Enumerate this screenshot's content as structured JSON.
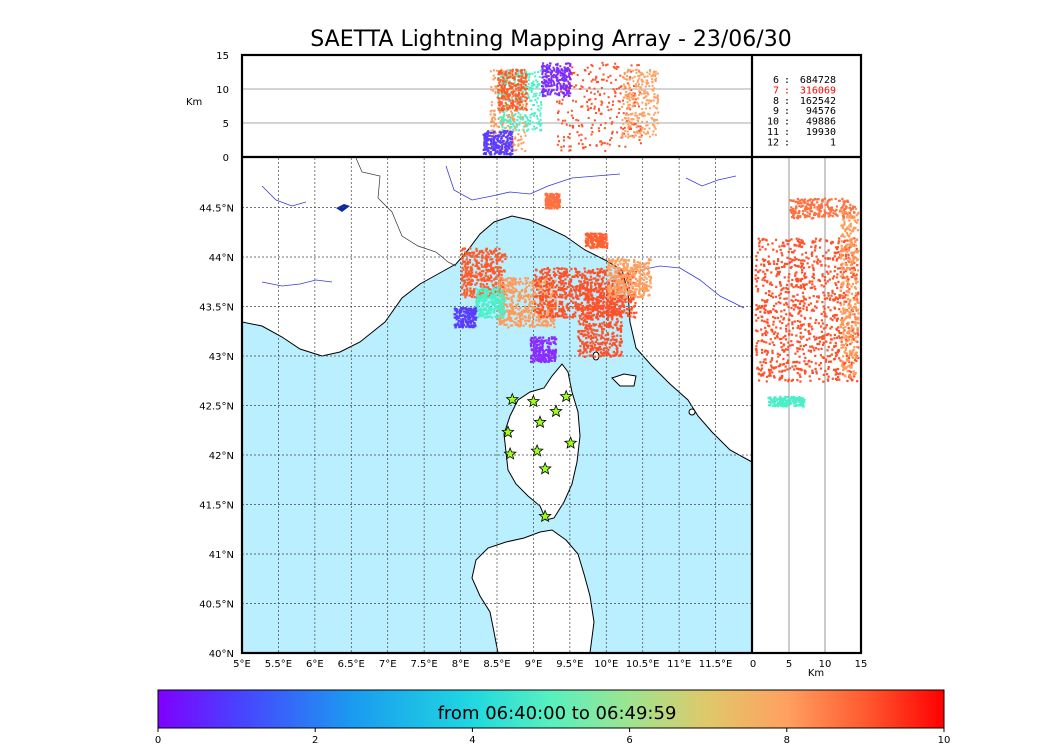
{
  "figure": {
    "title": "SAETTA Lightning Mapping Array - 23/06/30"
  },
  "chart_data": [
    {
      "panel": "altitude-vs-longitude",
      "type": "scatter",
      "xlim": [
        5,
        12
      ],
      "ylim": [
        0,
        15
      ],
      "y_ticks": [
        "0",
        "5",
        "10",
        "15"
      ],
      "ylabel": "Km",
      "grid": "horizontal",
      "clusters": [
        {
          "lon": [
            8.4,
            8.9
          ],
          "alt": [
            1,
            13
          ],
          "color": "#ff9b5a"
        },
        {
          "lon": [
            8.5,
            9.1
          ],
          "alt": [
            4,
            13
          ],
          "color": "#4cf0c8"
        },
        {
          "lon": [
            8.3,
            8.7
          ],
          "alt": [
            0.5,
            4
          ],
          "color": "#5a3cff"
        },
        {
          "lon": [
            8.5,
            8.9
          ],
          "alt": [
            7,
            13
          ],
          "color": "#ff5a28"
        },
        {
          "lon": [
            9.3,
            10.5
          ],
          "alt": [
            1,
            14
          ],
          "color": "#ff5028"
        },
        {
          "lon": [
            9.1,
            9.5
          ],
          "alt": [
            9,
            14
          ],
          "color": "#7b2cff"
        },
        {
          "lon": [
            10.2,
            10.7
          ],
          "alt": [
            3,
            13
          ],
          "color": "#ffa060"
        }
      ]
    },
    {
      "panel": "station-counts",
      "type": "table",
      "rows": [
        {
          "label": "6  :",
          "value": "684728",
          "color": "#000000"
        },
        {
          "label": "7  :",
          "value": "316069",
          "color": "#ff0000"
        },
        {
          "label": "8  :",
          "value": "162542",
          "color": "#000000"
        },
        {
          "label": "9  :",
          "value": "94576",
          "color": "#000000"
        },
        {
          "label": "10 :",
          "value": "49886",
          "color": "#000000"
        },
        {
          "label": "11 :",
          "value": "19930",
          "color": "#000000"
        },
        {
          "label": "12 :",
          "value": "1",
          "color": "#000000"
        }
      ]
    },
    {
      "panel": "map",
      "type": "scatter",
      "xlim": [
        5,
        12
      ],
      "ylim": [
        40,
        45
      ],
      "x_ticks": [
        "5°E",
        "5.5°E",
        "6°E",
        "6.5°E",
        "7°E",
        "7.5°E",
        "8°E",
        "8.5°E",
        "9°E",
        "9.5°E",
        "10°E",
        "10.5°E",
        "11°E",
        "11.5°E"
      ],
      "y_ticks": [
        "40°N",
        "40.5°N",
        "41°N",
        "41.5°N",
        "42°N",
        "42.5°N",
        "43°N",
        "43.5°N",
        "44°N",
        "44.5°N"
      ],
      "grid": "dotted",
      "sea_color": "#b9efff",
      "clusters": [
        {
          "lon": [
            8.0,
            8.6
          ],
          "lat": [
            43.6,
            44.1
          ],
          "color": "#ff5a28"
        },
        {
          "lon": [
            8.5,
            9.3
          ],
          "lat": [
            43.3,
            43.8
          ],
          "color": "#ff9b5a"
        },
        {
          "lon": [
            9.0,
            10.4
          ],
          "lat": [
            43.4,
            43.9
          ],
          "color": "#ff5028"
        },
        {
          "lon": [
            9.6,
            10.2
          ],
          "lat": [
            43.0,
            43.7
          ],
          "color": "#ff5028"
        },
        {
          "lon": [
            9.7,
            10.0
          ],
          "lat": [
            44.1,
            44.25
          ],
          "color": "#ff6030"
        },
        {
          "lon": [
            9.15,
            9.35
          ],
          "lat": [
            44.5,
            44.65
          ],
          "color": "#ff7040"
        },
        {
          "lon": [
            8.95,
            9.3
          ],
          "lat": [
            42.95,
            43.2
          ],
          "color": "#8a2cff"
        },
        {
          "lon": [
            8.2,
            8.6
          ],
          "lat": [
            43.4,
            43.7
          ],
          "color": "#4cf0c8"
        },
        {
          "lon": [
            10.0,
            10.6
          ],
          "lat": [
            43.6,
            44.0
          ],
          "color": "#ffa060"
        },
        {
          "lon": [
            7.9,
            8.2
          ],
          "lat": [
            43.3,
            43.5
          ],
          "color": "#5a3cff"
        }
      ],
      "stations": [
        {
          "lon": 8.71,
          "lat": 42.56
        },
        {
          "lon": 9.0,
          "lat": 42.54
        },
        {
          "lon": 9.45,
          "lat": 42.59
        },
        {
          "lon": 9.31,
          "lat": 42.44
        },
        {
          "lon": 9.09,
          "lat": 42.33
        },
        {
          "lon": 8.65,
          "lat": 42.23
        },
        {
          "lon": 9.51,
          "lat": 42.12
        },
        {
          "lon": 8.68,
          "lat": 42.01
        },
        {
          "lon": 9.05,
          "lat": 42.04
        },
        {
          "lon": 9.16,
          "lat": 41.86
        },
        {
          "lon": 9.16,
          "lat": 41.38
        }
      ]
    },
    {
      "panel": "latitude-vs-altitude",
      "type": "scatter",
      "xlim": [
        0,
        15
      ],
      "ylim": [
        40,
        45
      ],
      "x_ticks": [
        "0",
        "5",
        "10",
        "15"
      ],
      "xlabel": "Km",
      "grid": "vertical",
      "clusters": [
        {
          "alt": [
            0.2,
            14.5
          ],
          "lat": [
            42.75,
            44.2
          ],
          "color": "#ff5028"
        },
        {
          "alt": [
            5,
            14
          ],
          "lat": [
            44.4,
            44.6
          ],
          "color": "#ff7040"
        },
        {
          "alt": [
            2,
            7
          ],
          "lat": [
            42.5,
            42.6
          ],
          "color": "#4cf0c8"
        },
        {
          "alt": [
            12,
            14.5
          ],
          "lat": [
            42.8,
            44.5
          ],
          "color": "#ff9b5a"
        }
      ]
    },
    {
      "panel": "colorbar",
      "type": "heatmap",
      "label": "from 06:40:00 to 06:49:59",
      "range": [
        0,
        10
      ],
      "ticks": [
        "0",
        "2",
        "4",
        "6",
        "8",
        "10"
      ]
    }
  ]
}
